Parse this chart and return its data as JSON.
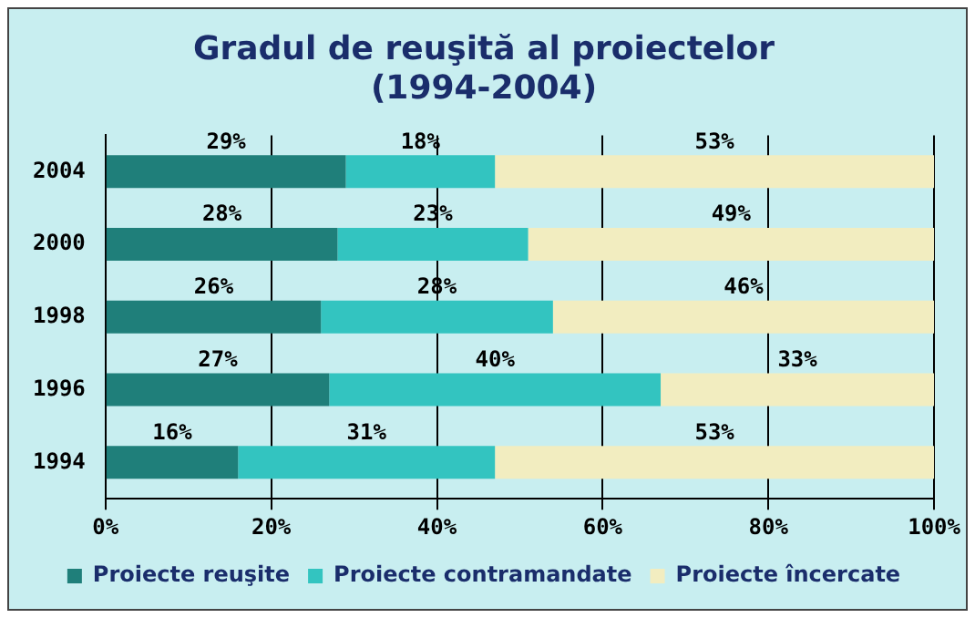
{
  "chart_data": {
    "type": "bar",
    "orientation": "horizontal",
    "stacked": true,
    "title": "Gradul de reuşită al proiectelor",
    "subtitle": "(1994-2004)",
    "categories": [
      "2004",
      "2000",
      "1998",
      "1996",
      "1994"
    ],
    "series": [
      {
        "name": "Proiecte reuşite",
        "color": "#1f7f7a",
        "values": [
          29,
          28,
          26,
          27,
          16
        ],
        "value_labels": [
          "29%",
          "28%",
          "26%",
          "27%",
          "16%"
        ]
      },
      {
        "name": "Proiecte contramandate",
        "color": "#33c4c0",
        "values": [
          18,
          23,
          28,
          40,
          31
        ],
        "value_labels": [
          "18%",
          "23%",
          "28%",
          "40%",
          "31%"
        ]
      },
      {
        "name": "Proiecte încercate",
        "color": "#f2edc0",
        "values": [
          53,
          49,
          46,
          33,
          53
        ],
        "value_labels": [
          "53%",
          "49%",
          "46%",
          "33%",
          "53%"
        ]
      }
    ],
    "xlim": [
      0,
      100
    ],
    "xticks": [
      {
        "value": 0,
        "label": "0%"
      },
      {
        "value": 20,
        "label": "20%"
      },
      {
        "value": 40,
        "label": "40%"
      },
      {
        "value": 60,
        "label": "60%"
      },
      {
        "value": 80,
        "label": "80%"
      },
      {
        "value": 100,
        "label": "100%"
      }
    ],
    "grid": "x",
    "legend": "bottom"
  }
}
